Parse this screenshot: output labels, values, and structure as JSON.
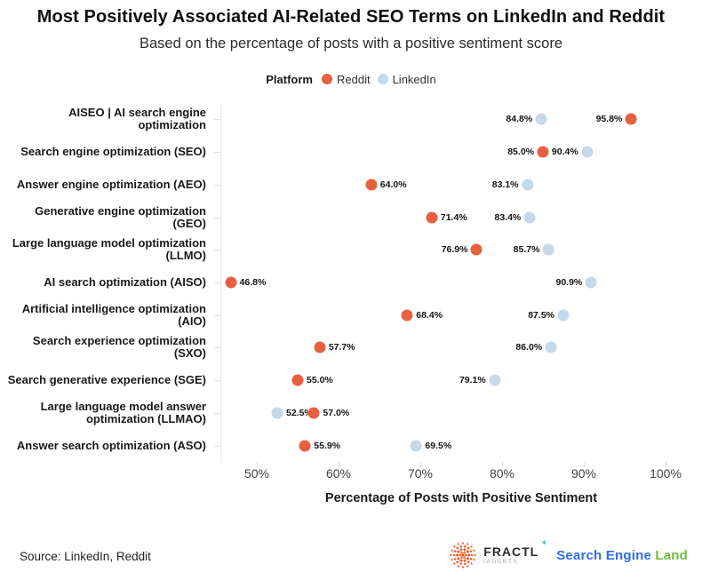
{
  "title": "Most Positively Associated AI-Related SEO Terms on LinkedIn and Reddit",
  "subtitle": "Based on the percentage of posts with a positive sentiment score",
  "legend": {
    "label": "Platform",
    "series": [
      {
        "name": "Reddit",
        "color": "#E8613F"
      },
      {
        "name": "LinkedIn",
        "color": "#C5D9EB"
      }
    ]
  },
  "chart_data": {
    "type": "scatter",
    "subtype": "horizontal-dot-plot",
    "xlabel": "Percentage of Posts with Positive Sentiment",
    "x_ticks": [
      50,
      60,
      70,
      80,
      90,
      100
    ],
    "x_tick_labels": [
      "50%",
      "60%",
      "70%",
      "80%",
      "90%",
      "100%"
    ],
    "xlim": [
      45.5,
      104.5
    ],
    "grid": "off",
    "legend_position": "top-center",
    "series": [
      {
        "name": "Reddit",
        "color": "#E8613F"
      },
      {
        "name": "LinkedIn",
        "color": "#C5D9EB"
      }
    ],
    "rows": [
      {
        "category": "AISEO | AI search engine optimization",
        "reddit": {
          "value": 95.8,
          "label": "95.8%",
          "label_side": "left"
        },
        "linkedin": {
          "value": 84.8,
          "label": "84.8%",
          "label_side": "left"
        }
      },
      {
        "category": "Search engine optimization (SEO)",
        "reddit": {
          "value": 85.0,
          "label": "85.0%",
          "label_side": "left"
        },
        "linkedin": {
          "value": 90.4,
          "label": "90.4%",
          "label_side": "left"
        }
      },
      {
        "category": "Answer engine optimization (AEO)",
        "reddit": {
          "value": 64.0,
          "label": "64.0%",
          "label_side": "right"
        },
        "linkedin": {
          "value": 83.1,
          "label": "83.1%",
          "label_side": "left"
        }
      },
      {
        "category": "Generative engine optimization (GEO)",
        "reddit": {
          "value": 71.4,
          "label": "71.4%",
          "label_side": "right"
        },
        "linkedin": {
          "value": 83.4,
          "label": "83.4%",
          "label_side": "left"
        }
      },
      {
        "category": "Large language model optimization (LLMO)",
        "reddit": {
          "value": 76.9,
          "label": "76.9%",
          "label_side": "left"
        },
        "linkedin": {
          "value": 85.7,
          "label": "85.7%",
          "label_side": "left"
        }
      },
      {
        "category": "AI search optimization (AISO)",
        "reddit": {
          "value": 46.8,
          "label": "46.8%",
          "label_side": "right"
        },
        "linkedin": {
          "value": 90.9,
          "label": "90.9%",
          "label_side": "left"
        }
      },
      {
        "category": "Artificial intelligence optimization (AIO)",
        "reddit": {
          "value": 68.4,
          "label": "68.4%",
          "label_side": "right"
        },
        "linkedin": {
          "value": 87.5,
          "label": "87.5%",
          "label_side": "left"
        }
      },
      {
        "category": "Search experience optimization (SXO)",
        "reddit": {
          "value": 57.7,
          "label": "57.7%",
          "label_side": "right"
        },
        "linkedin": {
          "value": 86.0,
          "label": "86.0%",
          "label_side": "left"
        }
      },
      {
        "category": "Search generative experience (SGE)",
        "reddit": {
          "value": 55.0,
          "label": "55.0%",
          "label_side": "right"
        },
        "linkedin": {
          "value": 79.1,
          "label": "79.1%",
          "label_side": "left"
        }
      },
      {
        "category": "Large language model answer optimization (LLMAO)",
        "reddit": {
          "value": 57.0,
          "label": "57.0%",
          "label_side": "right"
        },
        "linkedin": {
          "value": 52.5,
          "label": "52.5%",
          "label_side": "right"
        }
      },
      {
        "category": "Answer search optimization (ASO)",
        "reddit": {
          "value": 55.9,
          "label": "55.9%",
          "label_side": "right"
        },
        "linkedin": {
          "value": 69.5,
          "label": "69.5%",
          "label_side": "right"
        }
      }
    ]
  },
  "footer": {
    "source": "Source: LinkedIn, Reddit",
    "fractl_name": "FRACTL",
    "fractl_spark": "✦",
    "fractl_sub": "/AGENTS",
    "sel_part1": "Search Engine ",
    "sel_part2": "Land"
  }
}
